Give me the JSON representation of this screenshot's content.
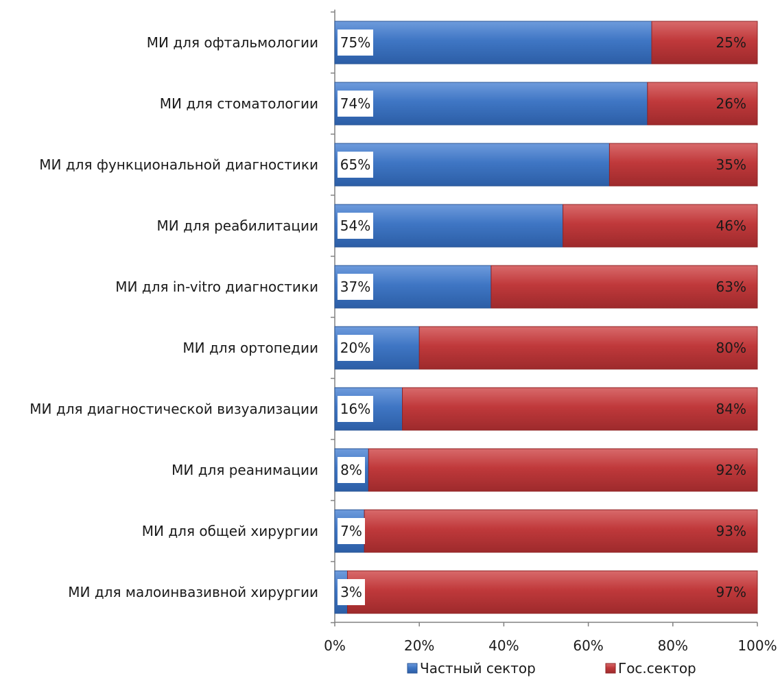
{
  "chart_data": {
    "type": "bar",
    "orientation": "horizontal",
    "stacked": "percent",
    "categories": [
      "МИ для офтальмологии",
      "МИ для стоматологии",
      "МИ для функциональной диагностики",
      "МИ для реабилитации",
      "МИ для in-vitro диагностики",
      "МИ для ортопедии",
      "МИ для диагностической визуализации",
      "МИ для реанимации",
      "МИ для общей хирургии",
      "МИ для малоинвазивной хирургии"
    ],
    "series": [
      {
        "name": "Частный сектор",
        "color": "#3f76c4",
        "values": [
          75,
          74,
          65,
          54,
          37,
          20,
          16,
          8,
          7,
          3
        ],
        "labels": [
          "75%",
          "74%",
          "65%",
          "54%",
          "37%",
          "20%",
          "16%",
          "8%",
          "7%",
          "3%"
        ]
      },
      {
        "name": "Гос.сектор",
        "color": "#c0393b",
        "values": [
          25,
          26,
          35,
          46,
          63,
          80,
          84,
          92,
          93,
          97
        ],
        "labels": [
          "25%",
          "26%",
          "35%",
          "46%",
          "63%",
          "80%",
          "84%",
          "92%",
          "93%",
          "97%"
        ]
      }
    ],
    "xlim": [
      0,
      100
    ],
    "x_ticks": [
      "0%",
      "20%",
      "40%",
      "60%",
      "80%",
      "100%"
    ],
    "legend": "bottom",
    "grid": false,
    "title": "",
    "xlabel": "",
    "ylabel": ""
  }
}
